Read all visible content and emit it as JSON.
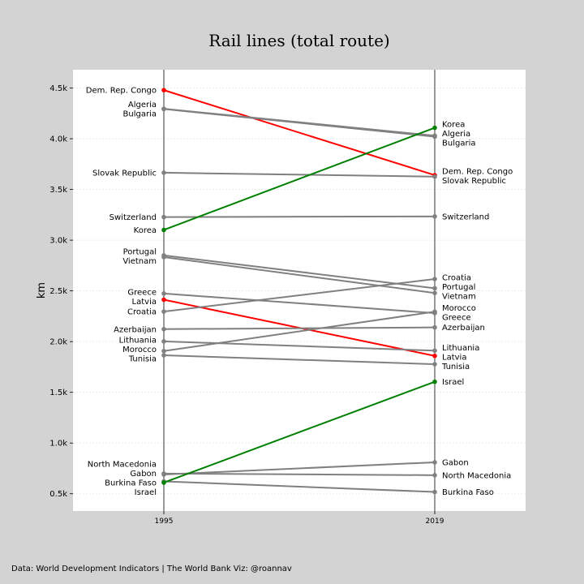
{
  "chart_data": {
    "type": "slope",
    "title": "Rail lines (total route)",
    "ylabel": "km",
    "ylim": [
      330,
      4680
    ],
    "yticks": [
      500,
      1000,
      1500,
      2000,
      2500,
      3000,
      3500,
      4000,
      4500
    ],
    "ytick_labels": [
      "0.5k",
      "1.0k",
      "1.5k",
      "2.0k",
      "2.5k",
      "3.0k",
      "3.5k",
      "4.0k",
      "4.5k"
    ],
    "x_labels": [
      "1995",
      "2019"
    ],
    "colors": {
      "up": "#008000",
      "down": "#ff0000",
      "neutral": "#808080"
    },
    "series": [
      {
        "name": "Dem. Rep. Congo",
        "v1995": 4479,
        "v2019": 3641,
        "color": "down"
      },
      {
        "name": "Algeria",
        "v1995": 4295,
        "v2019": 4030,
        "color": "neutral"
      },
      {
        "name": "Bulgaria",
        "v1995": 4293,
        "v2019": 4020,
        "color": "neutral"
      },
      {
        "name": "Slovak Republic",
        "v1995": 3665,
        "v2019": 3626,
        "color": "neutral"
      },
      {
        "name": "Switzerland",
        "v1995": 3228,
        "v2019": 3234,
        "color": "neutral"
      },
      {
        "name": "Korea",
        "v1995": 3101,
        "v2019": 4108,
        "color": "up"
      },
      {
        "name": "Portugal",
        "v1995": 2850,
        "v2019": 2526,
        "color": "neutral"
      },
      {
        "name": "Vietnam",
        "v1995": 2833,
        "v2019": 2479,
        "color": "neutral"
      },
      {
        "name": "Greece",
        "v1995": 2474,
        "v2019": 2281,
        "color": "neutral"
      },
      {
        "name": "Latvia",
        "v1995": 2413,
        "v2019": 1859,
        "color": "down"
      },
      {
        "name": "Croatia",
        "v1995": 2296,
        "v2019": 2617,
        "color": "neutral"
      },
      {
        "name": "Azerbaijan",
        "v1995": 2123,
        "v2019": 2140,
        "color": "neutral"
      },
      {
        "name": "Lithuania",
        "v1995": 2002,
        "v2019": 1911,
        "color": "neutral"
      },
      {
        "name": "Morocco",
        "v1995": 1907,
        "v2019": 2295,
        "color": "neutral"
      },
      {
        "name": "Tunisia",
        "v1995": 1865,
        "v2019": 1777,
        "color": "neutral"
      },
      {
        "name": "North Macedonia",
        "v1995": 699,
        "v2019": 683,
        "color": "neutral"
      },
      {
        "name": "Gabon",
        "v1995": 690,
        "v2019": 810,
        "color": "neutral"
      },
      {
        "name": "Burkina Faso",
        "v1995": 622,
        "v2019": 518,
        "color": "neutral"
      },
      {
        "name": "Israel",
        "v1995": 610,
        "v2019": 1604,
        "color": "up"
      }
    ]
  },
  "footer_text": "Data: World Development Indicators | The World Bank   Viz: @roannav"
}
